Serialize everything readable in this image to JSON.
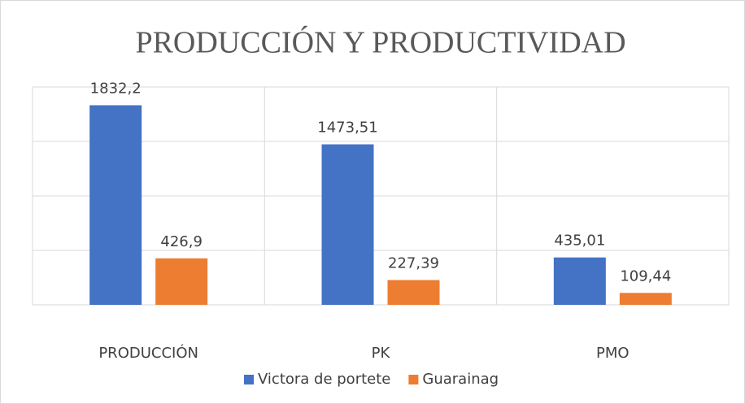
{
  "chart_data": {
    "type": "bar",
    "title": "PRODUCCIÓN Y PRODUCTIVIDAD",
    "categories": [
      "PRODUCCIÓN",
      "PK",
      "PMO"
    ],
    "series": [
      {
        "name": "Victora de portete",
        "color": "#4472c4",
        "values": [
          1832.2,
          1473.51,
          435.01
        ],
        "value_labels": [
          "1832,2",
          "1473,51",
          "435,01"
        ]
      },
      {
        "name": "Guarainag",
        "color": "#ed7d31",
        "values": [
          426.9,
          227.39,
          109.44
        ],
        "value_labels": [
          "426,9",
          "227,39",
          "109,44"
        ]
      }
    ],
    "ylim": [
      0,
      2000
    ],
    "yticks": [
      0,
      500,
      1000,
      1500,
      2000
    ],
    "grid": true,
    "legend": "bottom"
  }
}
